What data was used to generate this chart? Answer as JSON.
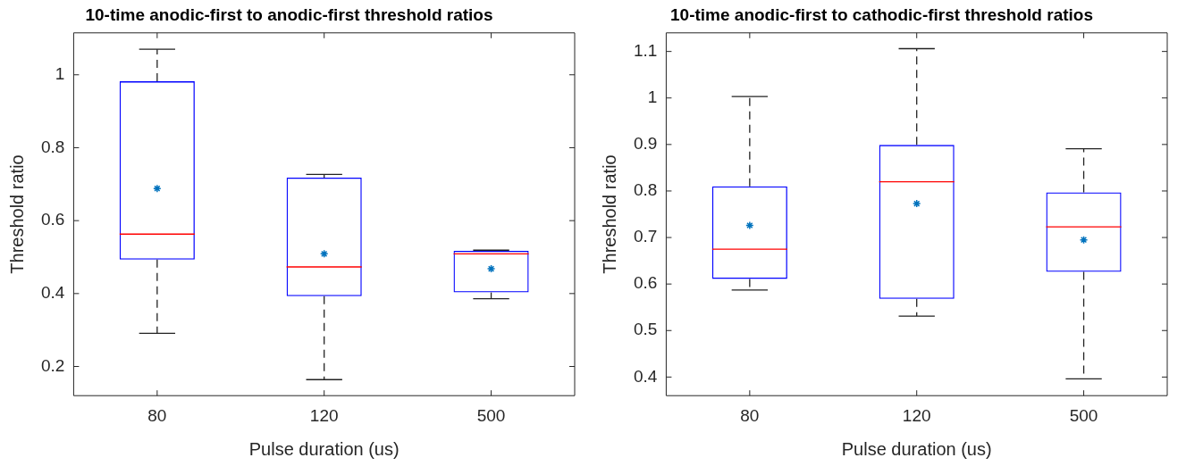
{
  "chart_data": [
    {
      "type": "box",
      "title": "10-time anodic-first to anodic-first threshold ratios",
      "xlabel": "Pulse duration (us)",
      "ylabel": "Threshold ratio",
      "categories": [
        "80",
        "120",
        "500"
      ],
      "ylim": [
        0.12,
        1.115
      ],
      "yticks": [
        0.2,
        0.4,
        0.6,
        0.8,
        1
      ],
      "grid": false,
      "legend": false,
      "marker": "star",
      "series": [
        {
          "color": "#0000ff",
          "boxes": [
            {
              "low": 0.291,
              "q1": 0.493,
              "median": 0.563,
              "q3": 0.982,
              "high": 1.07,
              "mean": 0.688
            },
            {
              "low": 0.164,
              "q1": 0.393,
              "median": 0.473,
              "q3": 0.718,
              "high": 0.727,
              "mean": 0.509
            },
            {
              "low": 0.386,
              "q1": 0.403,
              "median": 0.509,
              "q3": 0.517,
              "high": 0.519,
              "mean": 0.468
            }
          ]
        }
      ]
    },
    {
      "type": "box",
      "title": "10-time anodic-first to cathodic-first threshold ratios",
      "xlabel": "Pulse duration (us)",
      "ylabel": "Threshold ratio",
      "categories": [
        "80",
        "120",
        "500"
      ],
      "ylim": [
        0.36,
        1.14
      ],
      "yticks": [
        0.4,
        0.5,
        0.6,
        0.7,
        0.8,
        0.9,
        1,
        1.1
      ],
      "grid": false,
      "legend": false,
      "marker": "star",
      "series": [
        {
          "color": "#0000ff",
          "boxes": [
            {
              "low": 0.587,
              "q1": 0.611,
              "median": 0.675,
              "q3": 0.81,
              "high": 1.003,
              "mean": 0.726
            },
            {
              "low": 0.531,
              "q1": 0.568,
              "median": 0.82,
              "q3": 0.899,
              "high": 1.106,
              "mean": 0.773
            },
            {
              "low": 0.396,
              "q1": 0.626,
              "median": 0.723,
              "q3": 0.797,
              "high": 0.891,
              "mean": 0.695
            }
          ]
        }
      ]
    }
  ]
}
